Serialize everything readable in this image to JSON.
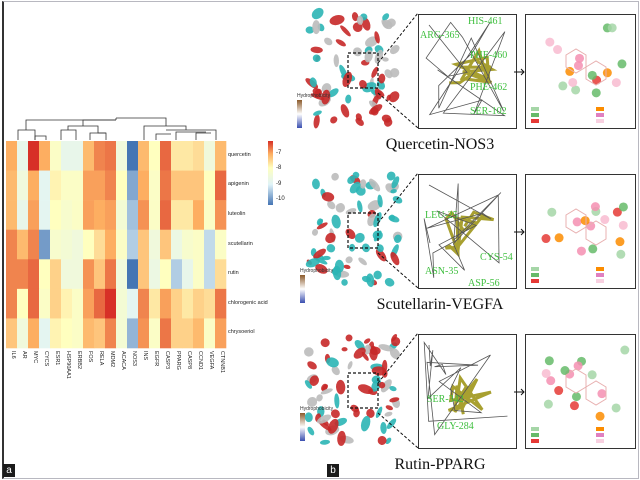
{
  "panel_a": {
    "letter": "a",
    "chart_data": {
      "type": "heatmap",
      "rows": [
        "quercetin",
        "apigenin",
        "luteolin",
        "scutellarin",
        "rutin",
        "chlorogenic acid",
        "chrysoeriol"
      ],
      "columns": [
        "IL6",
        "AR",
        "MYC",
        "CYCS",
        "ESR1",
        "HSP90AA1",
        "ERBB2",
        "FOS",
        "RELA",
        "MDM2",
        "ACACA",
        "NOS3",
        "INS",
        "EGFR",
        "CASP3",
        "PPARG",
        "CASP8",
        "CCND1",
        "VEGFA",
        "CTNNB1"
      ],
      "values": [
        [
          -7.5,
          -8.8,
          -6.6,
          -7.5,
          -8.3,
          -8.8,
          -8.8,
          -7.6,
          -7.2,
          -7.1,
          -8.6,
          -10.0,
          -7.6,
          -8.2,
          -7.0,
          -8.0,
          -8.0,
          -7.9,
          -8.6,
          -7.6
        ],
        [
          -7.6,
          -8.6,
          -7.5,
          -8.9,
          -8.1,
          -8.3,
          -8.3,
          -7.4,
          -7.4,
          -7.2,
          -8.2,
          -9.6,
          -7.5,
          -8.3,
          -7.1,
          -7.7,
          -7.7,
          -7.7,
          -8.2,
          -7.0
        ],
        [
          -7.6,
          -8.8,
          -7.4,
          -8.9,
          -8.2,
          -8.4,
          -8.3,
          -7.4,
          -7.5,
          -7.4,
          -8.5,
          -9.4,
          -7.3,
          -8.3,
          -7.0,
          -8.0,
          -8.0,
          -7.5,
          -8.3,
          -7.3
        ],
        [
          -7.2,
          -7.6,
          -7.2,
          -9.7,
          -8.4,
          -8.5,
          -8.6,
          -8.2,
          -7.9,
          -7.5,
          -8.3,
          -9.3,
          -7.7,
          -8.6,
          -7.7,
          -8.7,
          -8.4,
          -8.3,
          -9.2,
          -8.3
        ],
        [
          -7.2,
          -7.2,
          -7.0,
          -8.2,
          -7.8,
          -8.6,
          -8.6,
          -7.3,
          -7.7,
          -7.1,
          -8.6,
          -10.2,
          -7.7,
          -8.7,
          -8.2,
          -9.3,
          -8.8,
          -8.3,
          -9.2,
          -7.9
        ],
        [
          -7.2,
          -8.2,
          -7.0,
          -8.3,
          -7.8,
          -8.1,
          -8.3,
          -7.4,
          -7.0,
          -6.5,
          -8.5,
          -8.9,
          -7.2,
          -8.0,
          -7.4,
          -7.8,
          -8.0,
          -7.8,
          -7.9,
          -7.1
        ],
        [
          -7.7,
          -8.6,
          -7.5,
          -8.9,
          -8.1,
          -8.2,
          -8.3,
          -7.6,
          -7.7,
          -7.2,
          -8.5,
          -9.5,
          -7.3,
          -8.3,
          -7.1,
          -7.8,
          -7.8,
          -7.6,
          -8.3,
          -7.4
        ]
      ],
      "colorbar_ticks": [
        "-7",
        "-8",
        "-9",
        "-10"
      ],
      "color_range": [
        -10.2,
        -6.5
      ],
      "colors": {
        "low": "#4575b4",
        "mid_low": "#e0f3f8",
        "mid": "#ffffbf",
        "mid_high": "#fdae61",
        "high": "#d73027"
      }
    }
  },
  "panel_b": {
    "letter": "b",
    "complexes": [
      {
        "title": "Quercetin-NOS3",
        "residues": [
          "ARG-365",
          "HIS-461",
          "PHE-460",
          "PHE-462",
          "SER-102"
        ],
        "colorbar_label": "Hydrophobicity"
      },
      {
        "title": "Scutellarin-VEGFA",
        "residues": [
          "LEU-25",
          "CYS-54",
          "ASN-35",
          "ASP-56"
        ],
        "colorbar_label": "Hydrophobicity"
      },
      {
        "title": "Rutin-PPARG",
        "residues": [
          "SER-342",
          "GLY-284"
        ],
        "colorbar_label": "Hydrophobicity"
      }
    ]
  }
}
